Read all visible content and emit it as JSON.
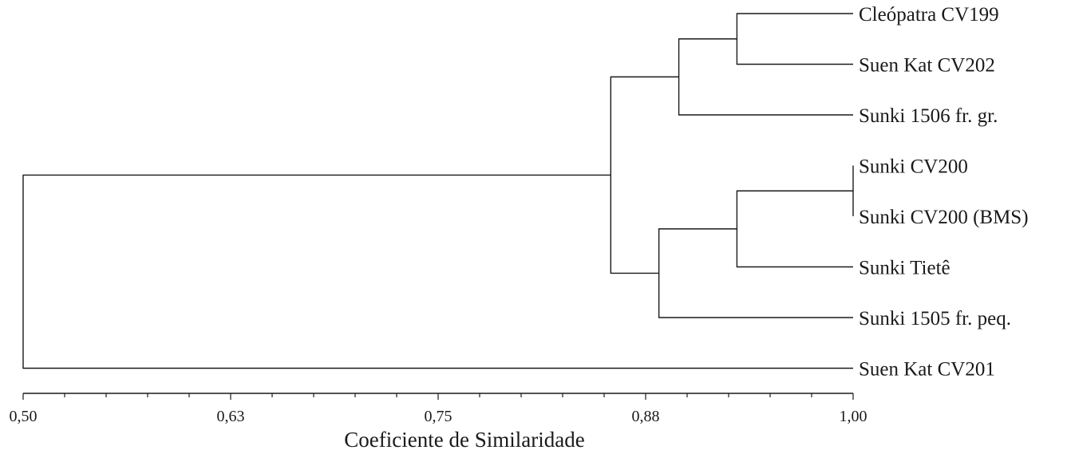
{
  "chart_data": {
    "type": "dendrogram",
    "xlabel": "Coeficiente de Similaridade",
    "xlim": [
      0.5,
      1.0
    ],
    "ticks": [
      {
        "value": 0.5,
        "label": "0,50"
      },
      {
        "value": 0.625,
        "label": "0,63"
      },
      {
        "value": 0.75,
        "label": "0,75"
      },
      {
        "value": 0.875,
        "label": "0,88"
      },
      {
        "value": 1.0,
        "label": "1,00"
      }
    ],
    "minor_tick_step": 0.025,
    "leaves": [
      "Cleópatra CV199",
      "Suen Kat CV202",
      "Sunki 1506 fr. gr.",
      "Sunki CV200",
      "Sunki CV200 (BMS)",
      "Sunki Tietê",
      "Sunki 1505 fr. peq.",
      "Suen Kat CV201"
    ],
    "merges": [
      {
        "children": [
          "L3",
          "L4"
        ],
        "similarity": 1.0
      },
      {
        "children": [
          "L0",
          "L1"
        ],
        "similarity": 0.93
      },
      {
        "children": [
          "M1",
          "L2"
        ],
        "similarity": 0.895
      },
      {
        "children": [
          "M0",
          "L5"
        ],
        "similarity": 0.93
      },
      {
        "children": [
          "M3",
          "L6"
        ],
        "similarity": 0.883
      },
      {
        "children": [
          "M2",
          "M4"
        ],
        "similarity": 0.854
      },
      {
        "children": [
          "M5",
          "L7"
        ],
        "similarity": 0.5
      }
    ]
  }
}
